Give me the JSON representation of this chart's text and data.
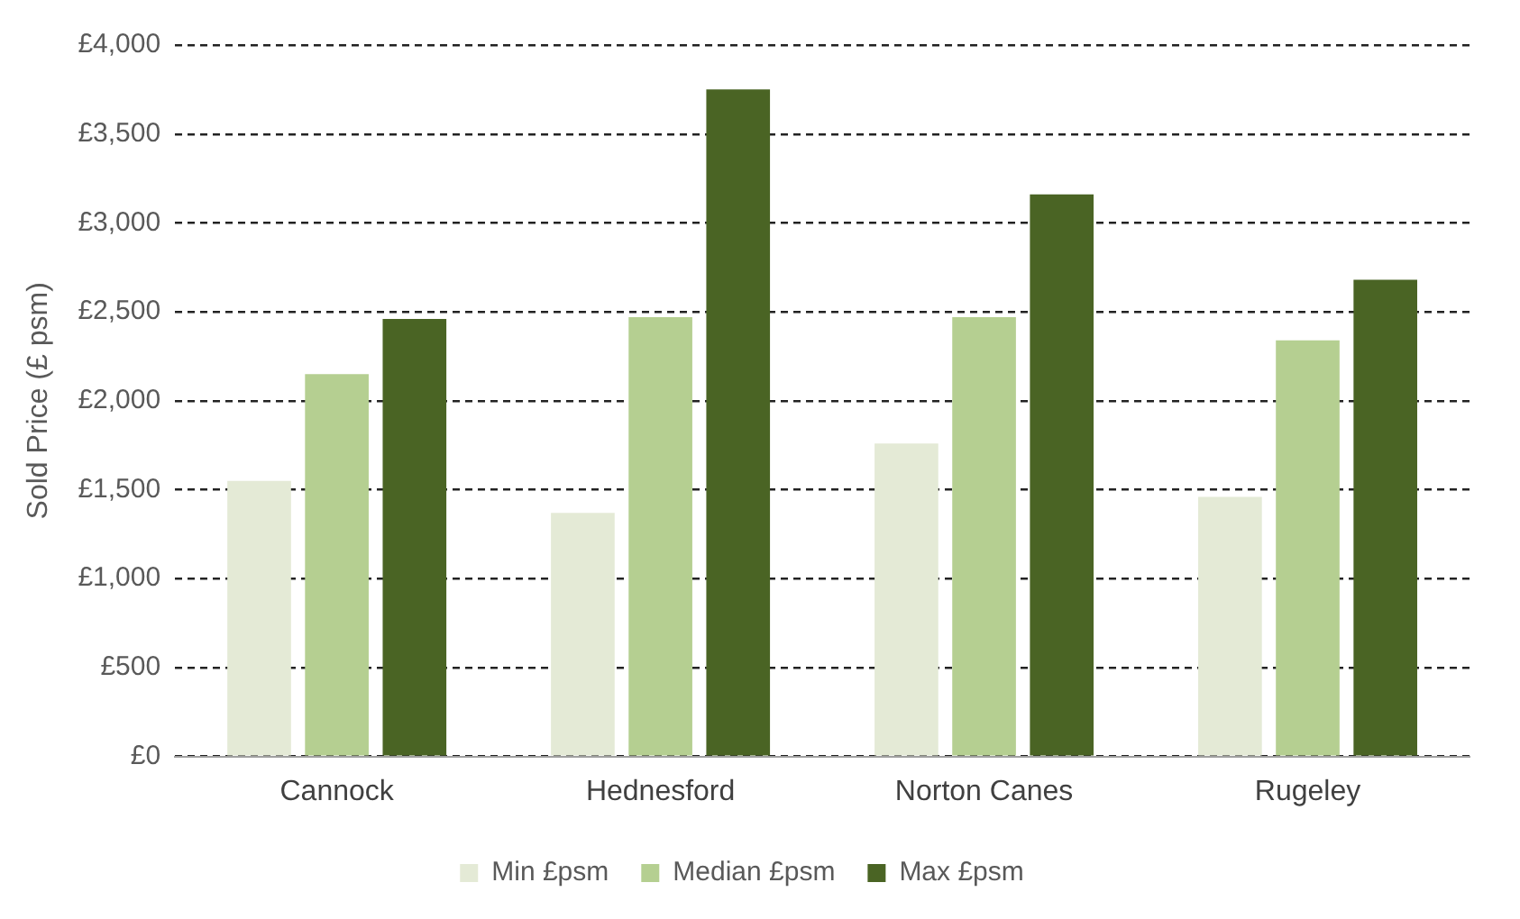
{
  "chart_data": {
    "type": "bar",
    "ylabel": "Sold Price (£ psm)",
    "categories": [
      "Cannock",
      "Hednesford",
      "Norton Canes",
      "Rugeley"
    ],
    "series": [
      {
        "name": "Min £psm",
        "color": "#e4ead6",
        "values": [
          1550,
          1370,
          1760,
          1460
        ]
      },
      {
        "name": "Median £psm",
        "color": "#b5cf91",
        "values": [
          2150,
          2470,
          2470,
          2340
        ]
      },
      {
        "name": "Max £psm",
        "color": "#4a6424",
        "values": [
          2460,
          3750,
          3160,
          2680
        ]
      }
    ],
    "ylim": [
      0,
      4000
    ],
    "yticks": [
      {
        "value": 0,
        "label": "£0"
      },
      {
        "value": 500,
        "label": "£500"
      },
      {
        "value": 1000,
        "label": "£1,000"
      },
      {
        "value": 1500,
        "label": "£1,500"
      },
      {
        "value": 2000,
        "label": "£2,000"
      },
      {
        "value": 2500,
        "label": "£2,500"
      },
      {
        "value": 3000,
        "label": "£3,000"
      },
      {
        "value": 3500,
        "label": "£3,500"
      },
      {
        "value": 4000,
        "label": "£4,000"
      }
    ],
    "grid": "y",
    "legend": "bottom",
    "line_style": "dashed"
  }
}
